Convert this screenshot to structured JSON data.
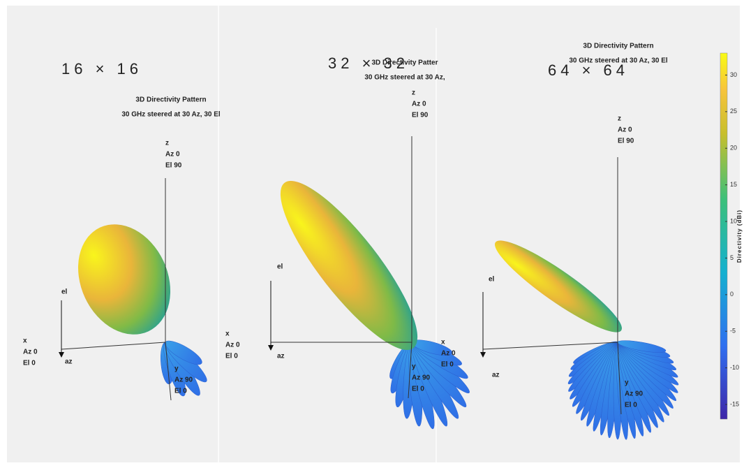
{
  "panels": [
    {
      "size_label": "16 × 16",
      "title": "3D Directivity Pattern",
      "subtitle": "30 GHz steered at 30 Az, 30 El",
      "z_axis": [
        "z",
        "Az 0",
        "El 90"
      ],
      "x_axis": [
        "x",
        "Az 0",
        "El 0"
      ],
      "y_axis": [
        "y",
        "Az 90",
        "El 0"
      ],
      "el_label": "el",
      "az_label": "az"
    },
    {
      "size_label": "32 × 32",
      "title": "3D Directivity Patter",
      "subtitle": "30 GHz steered at 30 Az,",
      "z_axis": [
        "z",
        "Az 0",
        "El 90"
      ],
      "x_axis": [
        "x",
        "Az 0",
        "El 0"
      ],
      "y_axis": [
        "y",
        "Az 90",
        "El 0"
      ],
      "el_label": "el",
      "az_label": "az"
    },
    {
      "size_label": "64 × 64",
      "title": "3D Directivity Pattern",
      "subtitle": "30 GHz steered at 30 Az, 30 El",
      "z_axis": [
        "z",
        "Az 0",
        "El 90"
      ],
      "x_axis": [
        "x",
        "Az 0",
        "El 0"
      ],
      "y_axis": [
        "y",
        "Az 90",
        "El 0"
      ],
      "el_label": "el",
      "az_label": "az"
    }
  ],
  "colorbar": {
    "label": "Directivity (dBi)",
    "lim": [
      -17,
      33
    ],
    "ticks": [
      -15,
      -10,
      -5,
      0,
      5,
      10,
      15,
      20,
      25,
      30
    ]
  }
}
